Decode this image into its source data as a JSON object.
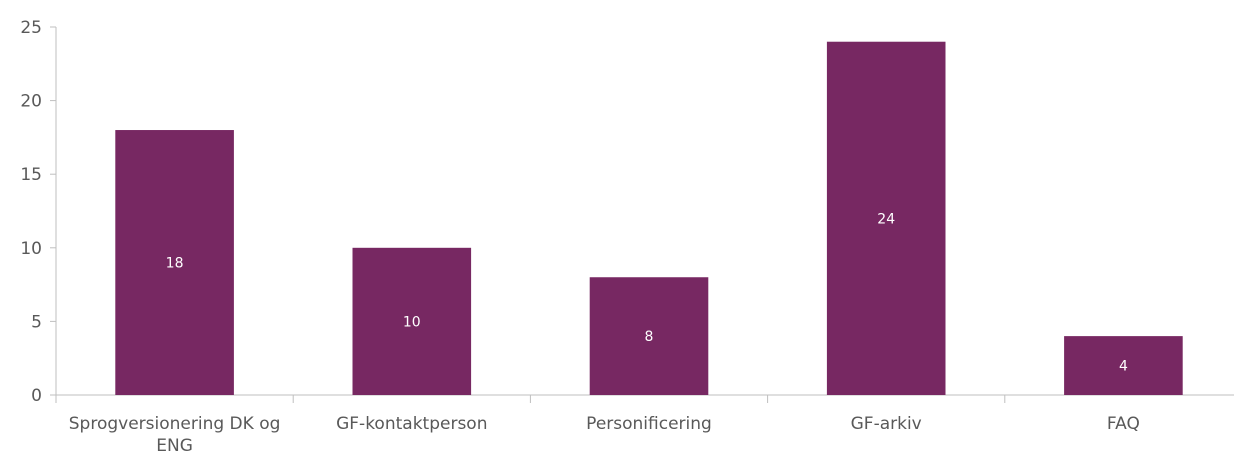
{
  "chart_data": {
    "type": "bar",
    "categories": [
      "Sprogversionering DK og ENG",
      "GF-kontaktperson",
      "Personificering",
      "GF-arkiv",
      "FAQ"
    ],
    "values": [
      18,
      10,
      8,
      24,
      4
    ],
    "data_labels": [
      "18",
      "10",
      "8",
      "24",
      "4"
    ],
    "title": "",
    "xlabel": "",
    "ylabel": "",
    "ylim": [
      0,
      25
    ],
    "yticks": [
      0,
      5,
      10,
      15,
      20,
      25
    ],
    "ytick_labels": [
      "0",
      "5",
      "10",
      "15",
      "20",
      "25"
    ],
    "grid": false,
    "legend": false,
    "colors": {
      "bar": "#772862",
      "axis": "#bfbfbf",
      "tick_text": "#595959",
      "data_label_text": "#ffffff"
    }
  }
}
